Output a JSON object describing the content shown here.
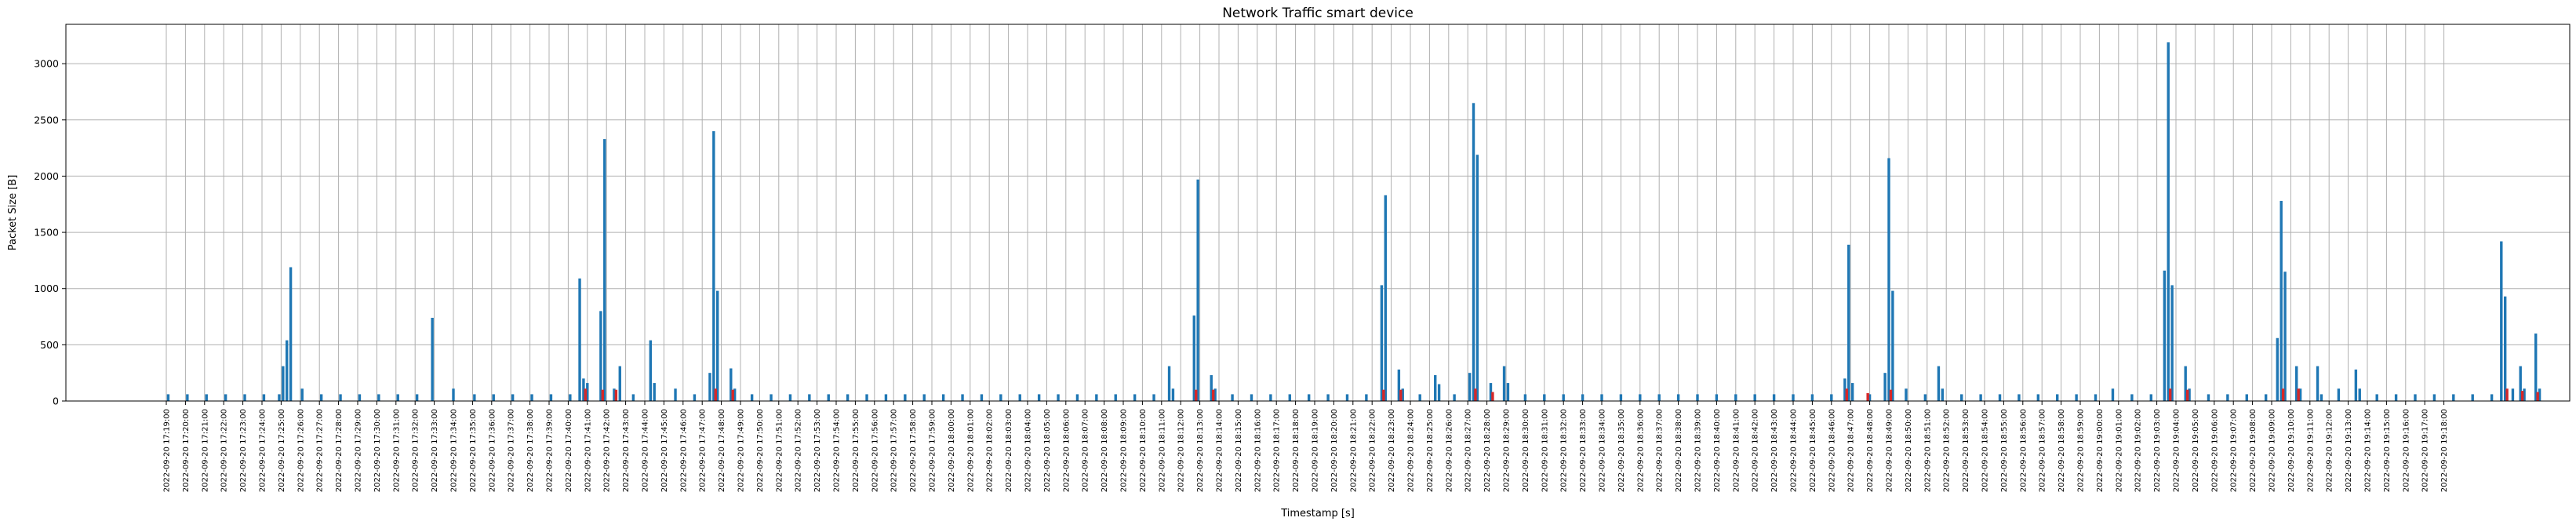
{
  "chart_data": {
    "type": "bar",
    "title": "Network Traffic smart device",
    "xlabel": "Timestamp [s]",
    "ylabel": "Packet Size [B]",
    "ylim": [
      0,
      3350
    ],
    "yticks": [
      0,
      500,
      1000,
      1500,
      2000,
      2500,
      3000
    ],
    "grid": true,
    "x_time_range_minutes": [
      0,
      124.5
    ],
    "tick_labels": [
      "2022-09-20 17:19:00",
      "2022-09-20 17:20:00",
      "2022-09-20 17:21:00",
      "2022-09-20 17:22:00",
      "2022-09-20 17:23:00",
      "2022-09-20 17:24:00",
      "2022-09-20 17:25:00",
      "2022-09-20 17:26:00",
      "2022-09-20 17:27:00",
      "2022-09-20 17:28:00",
      "2022-09-20 17:29:00",
      "2022-09-20 17:30:00",
      "2022-09-20 17:31:00",
      "2022-09-20 17:32:00",
      "2022-09-20 17:33:00",
      "2022-09-20 17:34:00",
      "2022-09-20 17:35:00",
      "2022-09-20 17:36:00",
      "2022-09-20 17:37:00",
      "2022-09-20 17:38:00",
      "2022-09-20 17:39:00",
      "2022-09-20 17:40:00",
      "2022-09-20 17:41:00",
      "2022-09-20 17:42:00",
      "2022-09-20 17:43:00",
      "2022-09-20 17:44:00",
      "2022-09-20 17:45:00",
      "2022-09-20 17:46:00",
      "2022-09-20 17:47:00",
      "2022-09-20 17:48:00",
      "2022-09-20 17:49:00",
      "2022-09-20 17:50:00",
      "2022-09-20 17:51:00",
      "2022-09-20 17:52:00",
      "2022-09-20 17:53:00",
      "2022-09-20 17:54:00",
      "2022-09-20 17:55:00",
      "2022-09-20 17:56:00",
      "2022-09-20 17:57:00",
      "2022-09-20 17:58:00",
      "2022-09-20 17:59:00",
      "2022-09-20 18:00:00",
      "2022-09-20 18:01:00",
      "2022-09-20 18:02:00",
      "2022-09-20 18:03:00",
      "2022-09-20 18:04:00",
      "2022-09-20 18:05:00",
      "2022-09-20 18:06:00",
      "2022-09-20 18:07:00",
      "2022-09-20 18:08:00",
      "2022-09-20 18:09:00",
      "2022-09-20 18:10:00",
      "2022-09-20 18:11:00",
      "2022-09-20 18:12:00",
      "2022-09-20 18:13:00",
      "2022-09-20 18:14:00",
      "2022-09-20 18:15:00",
      "2022-09-20 18:16:00",
      "2022-09-20 18:17:00",
      "2022-09-20 18:18:00",
      "2022-09-20 18:19:00",
      "2022-09-20 18:20:00",
      "2022-09-20 18:21:00",
      "2022-09-20 18:22:00",
      "2022-09-20 18:23:00",
      "2022-09-20 18:24:00",
      "2022-09-20 18:25:00",
      "2022-09-20 18:26:00",
      "2022-09-20 18:27:00",
      "2022-09-20 18:28:00",
      "2022-09-20 18:29:00",
      "2022-09-20 18:30:00",
      "2022-09-20 18:31:00",
      "2022-09-20 18:32:00",
      "2022-09-20 18:33:00",
      "2022-09-20 18:34:00",
      "2022-09-20 18:35:00",
      "2022-09-20 18:36:00",
      "2022-09-20 18:37:00",
      "2022-09-20 18:38:00",
      "2022-09-20 18:39:00",
      "2022-09-20 18:40:00",
      "2022-09-20 18:41:00",
      "2022-09-20 18:42:00",
      "2022-09-20 18:43:00",
      "2022-09-20 18:44:00",
      "2022-09-20 18:45:00",
      "2022-09-20 18:46:00",
      "2022-09-20 18:47:00",
      "2022-09-20 18:48:00",
      "2022-09-20 18:49:00",
      "2022-09-20 18:50:00",
      "2022-09-20 18:51:00",
      "2022-09-20 18:52:00",
      "2022-09-20 18:53:00",
      "2022-09-20 18:54:00",
      "2022-09-20 18:55:00",
      "2022-09-20 18:56:00",
      "2022-09-20 18:57:00",
      "2022-09-20 18:58:00",
      "2022-09-20 18:59:00",
      "2022-09-20 19:00:00",
      "2022-09-20 19:01:00",
      "2022-09-20 19:02:00",
      "2022-09-20 19:03:00",
      "2022-09-20 19:04:00",
      "2022-09-20 19:05:00",
      "2022-09-20 19:06:00",
      "2022-09-20 19:07:00",
      "2022-09-20 19:08:00",
      "2022-09-20 19:09:00",
      "2022-09-20 19:10:00",
      "2022-09-20 19:11:00",
      "2022-09-20 19:12:00",
      "2022-09-20 19:13:00",
      "2022-09-20 19:14:00",
      "2022-09-20 19:15:00",
      "2022-09-20 19:16:00",
      "2022-09-20 19:17:00",
      "2022-09-20 19:18:00"
    ],
    "series": [
      {
        "color": "#1f77b4",
        "points": [
          [
            0.1,
            60
          ],
          [
            1.1,
            60
          ],
          [
            2.1,
            60
          ],
          [
            3.1,
            60
          ],
          [
            4.1,
            60
          ],
          [
            5.1,
            60
          ],
          [
            5.9,
            60
          ],
          [
            6.1,
            310
          ],
          [
            6.3,
            540
          ],
          [
            6.5,
            1190
          ],
          [
            7.1,
            110
          ],
          [
            8.1,
            60
          ],
          [
            9.1,
            60
          ],
          [
            10.1,
            60
          ],
          [
            11.1,
            60
          ],
          [
            12.1,
            60
          ],
          [
            13.1,
            60
          ],
          [
            13.9,
            740
          ],
          [
            15.0,
            110
          ],
          [
            16.1,
            60
          ],
          [
            17.1,
            60
          ],
          [
            18.1,
            60
          ],
          [
            19.1,
            60
          ],
          [
            20.1,
            60
          ],
          [
            21.1,
            60
          ],
          [
            21.6,
            1090
          ],
          [
            21.8,
            200
          ],
          [
            22.0,
            160
          ],
          [
            22.7,
            800
          ],
          [
            22.9,
            2330
          ],
          [
            23.4,
            110
          ],
          [
            23.7,
            310
          ],
          [
            24.4,
            60
          ],
          [
            25.3,
            540
          ],
          [
            25.5,
            160
          ],
          [
            26.6,
            110
          ],
          [
            27.6,
            60
          ],
          [
            28.4,
            250
          ],
          [
            28.6,
            2400
          ],
          [
            28.8,
            980
          ],
          [
            29.5,
            290
          ],
          [
            29.7,
            110
          ],
          [
            30.6,
            60
          ],
          [
            31.6,
            60
          ],
          [
            32.6,
            60
          ],
          [
            33.6,
            60
          ],
          [
            34.6,
            60
          ],
          [
            35.6,
            60
          ],
          [
            36.6,
            60
          ],
          [
            37.6,
            60
          ],
          [
            38.6,
            60
          ],
          [
            39.6,
            60
          ],
          [
            40.6,
            60
          ],
          [
            41.6,
            60
          ],
          [
            42.6,
            60
          ],
          [
            43.6,
            60
          ],
          [
            44.6,
            60
          ],
          [
            45.6,
            60
          ],
          [
            46.6,
            60
          ],
          [
            47.6,
            60
          ],
          [
            48.6,
            60
          ],
          [
            49.6,
            60
          ],
          [
            50.6,
            60
          ],
          [
            51.6,
            60
          ],
          [
            52.4,
            310
          ],
          [
            52.6,
            110
          ],
          [
            53.7,
            760
          ],
          [
            53.9,
            1970
          ],
          [
            54.6,
            230
          ],
          [
            54.8,
            110
          ],
          [
            55.7,
            60
          ],
          [
            56.7,
            60
          ],
          [
            57.7,
            60
          ],
          [
            58.7,
            60
          ],
          [
            59.7,
            60
          ],
          [
            60.7,
            60
          ],
          [
            61.7,
            60
          ],
          [
            62.7,
            60
          ],
          [
            63.5,
            1030
          ],
          [
            63.7,
            1830
          ],
          [
            64.4,
            280
          ],
          [
            64.6,
            110
          ],
          [
            65.5,
            60
          ],
          [
            66.3,
            230
          ],
          [
            66.5,
            150
          ],
          [
            67.3,
            60
          ],
          [
            68.1,
            250
          ],
          [
            68.3,
            2650
          ],
          [
            68.5,
            2190
          ],
          [
            69.2,
            160
          ],
          [
            69.9,
            310
          ],
          [
            70.1,
            160
          ],
          [
            71.0,
            60
          ],
          [
            72.0,
            60
          ],
          [
            73.0,
            60
          ],
          [
            74.0,
            60
          ],
          [
            75.0,
            60
          ],
          [
            76.0,
            60
          ],
          [
            77.0,
            60
          ],
          [
            78.0,
            60
          ],
          [
            79.0,
            60
          ],
          [
            80.0,
            60
          ],
          [
            81.0,
            60
          ],
          [
            82.0,
            60
          ],
          [
            83.0,
            60
          ],
          [
            84.0,
            60
          ],
          [
            85.0,
            60
          ],
          [
            86.0,
            60
          ],
          [
            87.0,
            60
          ],
          [
            87.7,
            200
          ],
          [
            87.9,
            1390
          ],
          [
            88.1,
            160
          ],
          [
            89.0,
            60
          ],
          [
            89.8,
            250
          ],
          [
            90.0,
            2160
          ],
          [
            90.2,
            980
          ],
          [
            90.9,
            110
          ],
          [
            91.9,
            60
          ],
          [
            92.6,
            310
          ],
          [
            92.8,
            110
          ],
          [
            93.8,
            60
          ],
          [
            94.8,
            60
          ],
          [
            95.8,
            60
          ],
          [
            96.8,
            60
          ],
          [
            97.8,
            60
          ],
          [
            98.8,
            60
          ],
          [
            99.8,
            60
          ],
          [
            100.8,
            60
          ],
          [
            101.7,
            110
          ],
          [
            102.7,
            60
          ],
          [
            103.7,
            60
          ],
          [
            104.4,
            1160
          ],
          [
            104.6,
            3190
          ],
          [
            104.8,
            1030
          ],
          [
            105.5,
            310
          ],
          [
            105.7,
            110
          ],
          [
            106.7,
            60
          ],
          [
            107.7,
            60
          ],
          [
            108.7,
            60
          ],
          [
            109.7,
            60
          ],
          [
            110.3,
            560
          ],
          [
            110.5,
            1780
          ],
          [
            110.7,
            1150
          ],
          [
            111.3,
            310
          ],
          [
            111.5,
            110
          ],
          [
            112.4,
            310
          ],
          [
            112.6,
            60
          ],
          [
            113.5,
            110
          ],
          [
            114.4,
            280
          ],
          [
            114.6,
            110
          ],
          [
            115.5,
            60
          ],
          [
            116.5,
            60
          ],
          [
            117.5,
            60
          ],
          [
            118.5,
            60
          ],
          [
            119.5,
            60
          ],
          [
            120.5,
            60
          ],
          [
            121.5,
            60
          ],
          [
            122.0,
            1420
          ],
          [
            122.2,
            930
          ],
          [
            122.6,
            110
          ],
          [
            123.0,
            310
          ],
          [
            123.2,
            110
          ],
          [
            123.8,
            600
          ],
          [
            124.0,
            110
          ]
        ]
      },
      {
        "color": "#d62728",
        "points": [
          [
            21.9,
            110
          ],
          [
            22.8,
            100
          ],
          [
            23.5,
            100
          ],
          [
            28.7,
            110
          ],
          [
            29.6,
            100
          ],
          [
            53.8,
            100
          ],
          [
            54.7,
            100
          ],
          [
            63.6,
            100
          ],
          [
            64.5,
            100
          ],
          [
            68.4,
            110
          ],
          [
            69.3,
            80
          ],
          [
            87.8,
            110
          ],
          [
            88.9,
            70
          ],
          [
            90.1,
            100
          ],
          [
            104.7,
            110
          ],
          [
            105.6,
            100
          ],
          [
            110.6,
            110
          ],
          [
            111.4,
            110
          ],
          [
            122.3,
            110
          ],
          [
            123.1,
            90
          ],
          [
            123.9,
            80
          ]
        ]
      }
    ]
  }
}
